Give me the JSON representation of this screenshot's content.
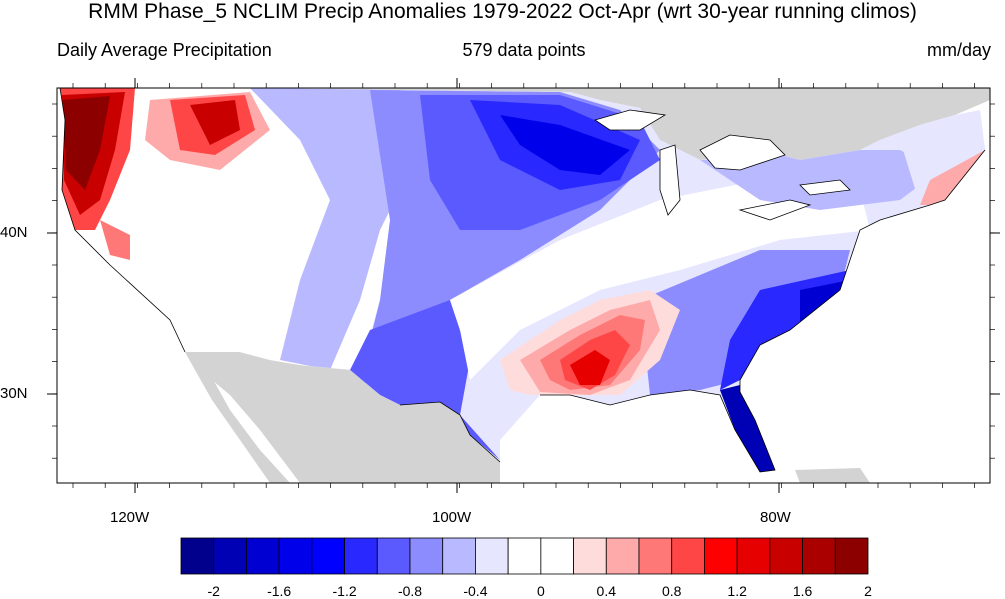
{
  "title": "RMM Phase_5 NCLIM Precip Anomalies 1979-2022 Oct-Apr (wrt 30-year running climos)",
  "subtitle_left": "Daily Average Precipitation",
  "subtitle_center": "579 data points",
  "subtitle_right": "mm/day",
  "lon_labels": [
    "120W",
    "100W",
    "80W"
  ],
  "lat_labels": [
    "40N",
    "30N"
  ],
  "colorbar": {
    "labels": [
      "-2",
      "-1.6",
      "-1.2",
      "-0.8",
      "-0.4",
      "0",
      "0.4",
      "0.8",
      "1.2",
      "1.6",
      "2"
    ],
    "colors": [
      "#00008c",
      "#0000b4",
      "#0000d2",
      "#0000eb",
      "#0000ff",
      "#2828ff",
      "#5a5aff",
      "#8c8cff",
      "#b9b9ff",
      "#e6e6ff",
      "#ffffff",
      "#ffffff",
      "#ffdcdc",
      "#ffaaaa",
      "#ff7878",
      "#ff4646",
      "#ff0000",
      "#e60000",
      "#c80000",
      "#aa0000",
      "#8c0000"
    ]
  },
  "colors": {
    "land_masked": "#d3d3d3",
    "background": "#ffffff"
  }
}
